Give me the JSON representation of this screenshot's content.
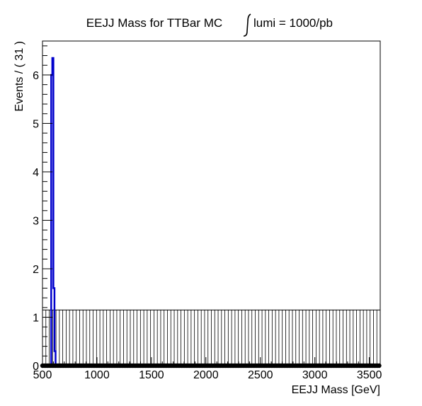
{
  "chart_data": {
    "type": "line",
    "title": "EEJJ Mass for TTBar MC",
    "lumi_label": "lumi = 1000/pb",
    "xlabel": "EEJJ Mass [GeV]",
    "ylabel": "Events / ( 31 )",
    "xlim": [
      500,
      3600
    ],
    "ylim": [
      0,
      6.7
    ],
    "x_ticks": [
      500,
      1000,
      1500,
      2000,
      2500,
      3000,
      3500
    ],
    "y_ticks": [
      0,
      1,
      2,
      3,
      4,
      5,
      6
    ],
    "grid": false,
    "series": [
      {
        "color": "#0000cc",
        "x": [
          500,
          580,
          580,
          590,
          590,
          600,
          600,
          610,
          610,
          620,
          620,
          640,
          700,
          800,
          900,
          1000,
          1100,
          1200,
          1250
        ],
        "y": [
          0,
          0,
          6.0,
          6.0,
          6.35,
          6.35,
          1.6,
          1.6,
          0.3,
          0.3,
          0.02,
          0.02,
          0.01,
          0.01,
          0.01,
          0.01,
          0.01,
          0.01,
          0
        ]
      }
    ],
    "error_band": {
      "x_start": 500,
      "x_end": 3600,
      "bin_width": 31,
      "y_low": 0,
      "y_high": 1.15,
      "color": "#000000"
    },
    "points": {
      "x_start": 500,
      "x_end": 3600,
      "step": 15,
      "y": 0,
      "color": "#000000"
    }
  }
}
